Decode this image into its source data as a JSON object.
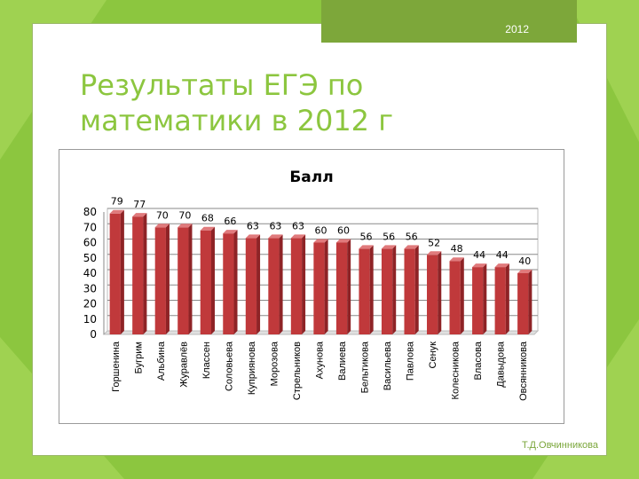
{
  "slide": {
    "year_tag": "2012",
    "title_line1": "Результаты ЕГЭ по",
    "title_line2": "математики в 2012 г",
    "author": "Т.Д.Овчинникова"
  },
  "colors": {
    "background": "#8cc63f",
    "title": "#8cc63f",
    "bar": "#c0393b"
  },
  "chart_data": {
    "type": "bar",
    "title": "Балл",
    "categories": [
      "Горшенина",
      "Бугрим",
      "Альбина",
      "Журавлёв",
      "Классен",
      "Соловьева",
      "Куприянова",
      "Морозова",
      "Стрельников",
      "Ахунова",
      "Валиева",
      "Бельтикова",
      "Васильева",
      "Павлова",
      "Сенук",
      "Колесникова",
      "Власова",
      "Давыдова",
      "Овсянникова"
    ],
    "values": [
      79,
      77,
      70,
      70,
      68,
      66,
      63,
      63,
      63,
      60,
      60,
      56,
      56,
      56,
      52,
      48,
      44,
      44,
      40
    ],
    "ylim": [
      0,
      80
    ],
    "yticks": [
      0,
      10,
      20,
      30,
      40,
      50,
      60,
      70,
      80
    ],
    "grid": true,
    "xlabel": "",
    "ylabel": ""
  }
}
